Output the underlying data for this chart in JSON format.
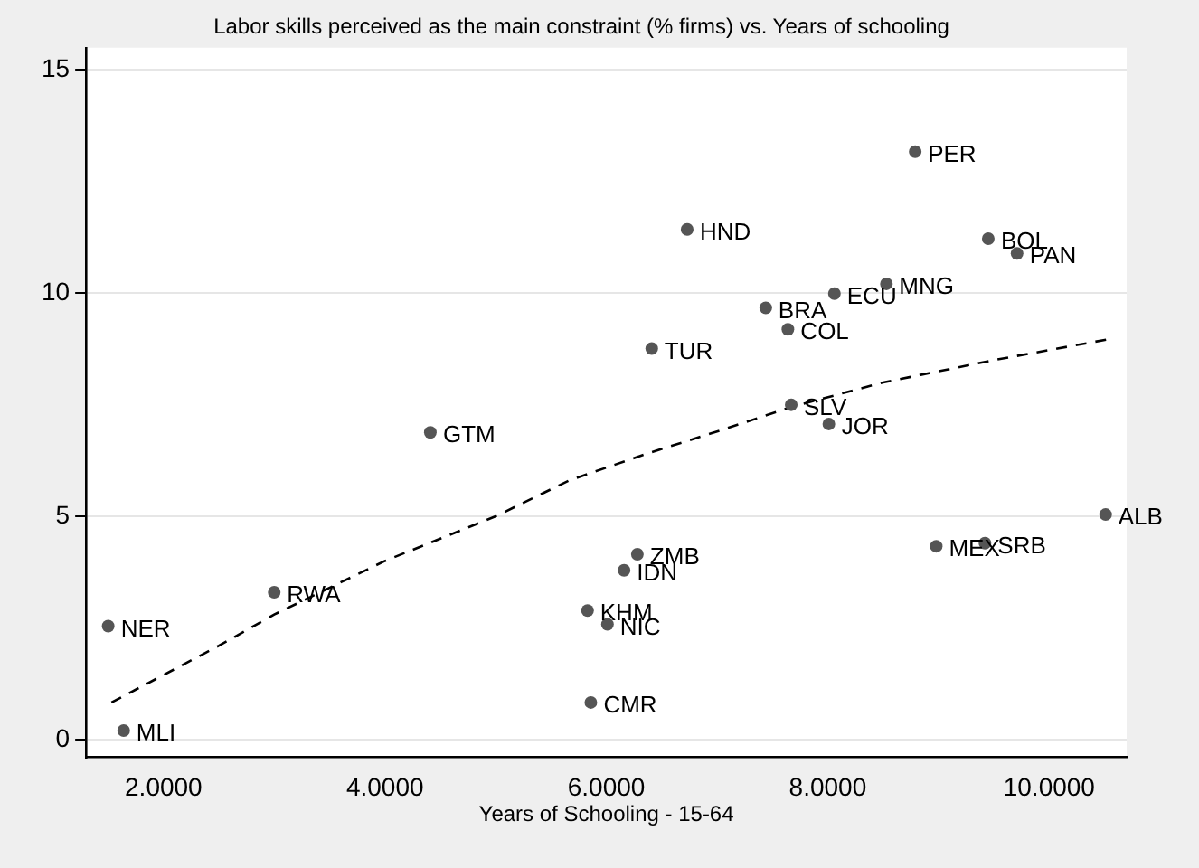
{
  "chart_data": {
    "type": "scatter",
    "title": "Labor skills perceived as the main constraint (% firms) vs. Years of schooling",
    "xlabel": "Years of Schooling - 15-64",
    "xlim": [
      1.3,
      10.7
    ],
    "xticks": [
      {
        "value": 2,
        "label": "2.0000"
      },
      {
        "value": 4,
        "label": "4.0000"
      },
      {
        "value": 6,
        "label": "6.0000"
      },
      {
        "value": 8,
        "label": "8.0000"
      },
      {
        "value": 10,
        "label": "10.0000"
      }
    ],
    "ylim": [
      -0.4,
      15.5
    ],
    "yticks": [
      0,
      5,
      10,
      15
    ],
    "grid": "y",
    "legend": false,
    "series": [
      {
        "type": "scatter",
        "color": "#555555",
        "marker": "circle",
        "x": [
          1.5,
          1.64,
          3.0,
          4.41,
          5.83,
          5.86,
          6.01,
          6.16,
          6.28,
          6.41,
          6.73,
          7.44,
          7.64,
          7.67,
          8.01,
          8.06,
          8.53,
          8.79,
          8.98,
          9.42,
          9.45,
          9.71,
          10.51
        ],
        "values": [
          2.54,
          0.2,
          3.3,
          6.88,
          2.89,
          0.83,
          2.58,
          3.79,
          4.15,
          8.76,
          11.43,
          9.67,
          9.19,
          7.5,
          7.07,
          9.99,
          10.21,
          13.17,
          4.33,
          4.4,
          11.22,
          10.89,
          5.04
        ]
      },
      {
        "type": "line",
        "color": "#000000",
        "marker": "none",
        "line_style": "dashed",
        "x": [
          1.53,
          2.5,
          3.0,
          4.0,
          5.0,
          5.66,
          6.36,
          7.0,
          7.67,
          8.5,
          9.5,
          10.52
        ],
        "values": [
          0.83,
          2.1,
          2.8,
          4.0,
          5.0,
          5.8,
          6.4,
          6.9,
          7.45,
          8.0,
          8.5,
          8.96
        ]
      }
    ],
    "annotations": [
      {
        "text": "NER",
        "x": 1.5,
        "y": 2.54
      },
      {
        "text": "MLI",
        "x": 1.64,
        "y": 0.2
      },
      {
        "text": "RWA",
        "x": 3.0,
        "y": 3.3
      },
      {
        "text": "GTM",
        "x": 4.41,
        "y": 6.88
      },
      {
        "text": "KHM",
        "x": 5.83,
        "y": 2.89
      },
      {
        "text": "CMR",
        "x": 5.86,
        "y": 0.83
      },
      {
        "text": "NIC",
        "x": 6.01,
        "y": 2.58
      },
      {
        "text": "IDN",
        "x": 6.16,
        "y": 3.79
      },
      {
        "text": "ZMB",
        "x": 6.28,
        "y": 4.15
      },
      {
        "text": "TUR",
        "x": 6.41,
        "y": 8.76
      },
      {
        "text": "HND",
        "x": 6.73,
        "y": 11.43
      },
      {
        "text": "BRA",
        "x": 7.44,
        "y": 9.67
      },
      {
        "text": "COL",
        "x": 7.64,
        "y": 9.19
      },
      {
        "text": "SLV",
        "x": 7.67,
        "y": 7.5
      },
      {
        "text": "JOR",
        "x": 8.01,
        "y": 7.07
      },
      {
        "text": "ECU",
        "x": 8.06,
        "y": 9.99
      },
      {
        "text": "MNG",
        "x": 8.53,
        "y": 10.21
      },
      {
        "text": "PER",
        "x": 8.79,
        "y": 13.17
      },
      {
        "text": "MEX",
        "x": 8.98,
        "y": 4.33
      },
      {
        "text": "SRB",
        "x": 9.42,
        "y": 4.4
      },
      {
        "text": "BOL",
        "x": 9.45,
        "y": 11.22
      },
      {
        "text": "PAN",
        "x": 9.71,
        "y": 10.89
      },
      {
        "text": "ALB",
        "x": 10.51,
        "y": 5.04
      }
    ]
  }
}
